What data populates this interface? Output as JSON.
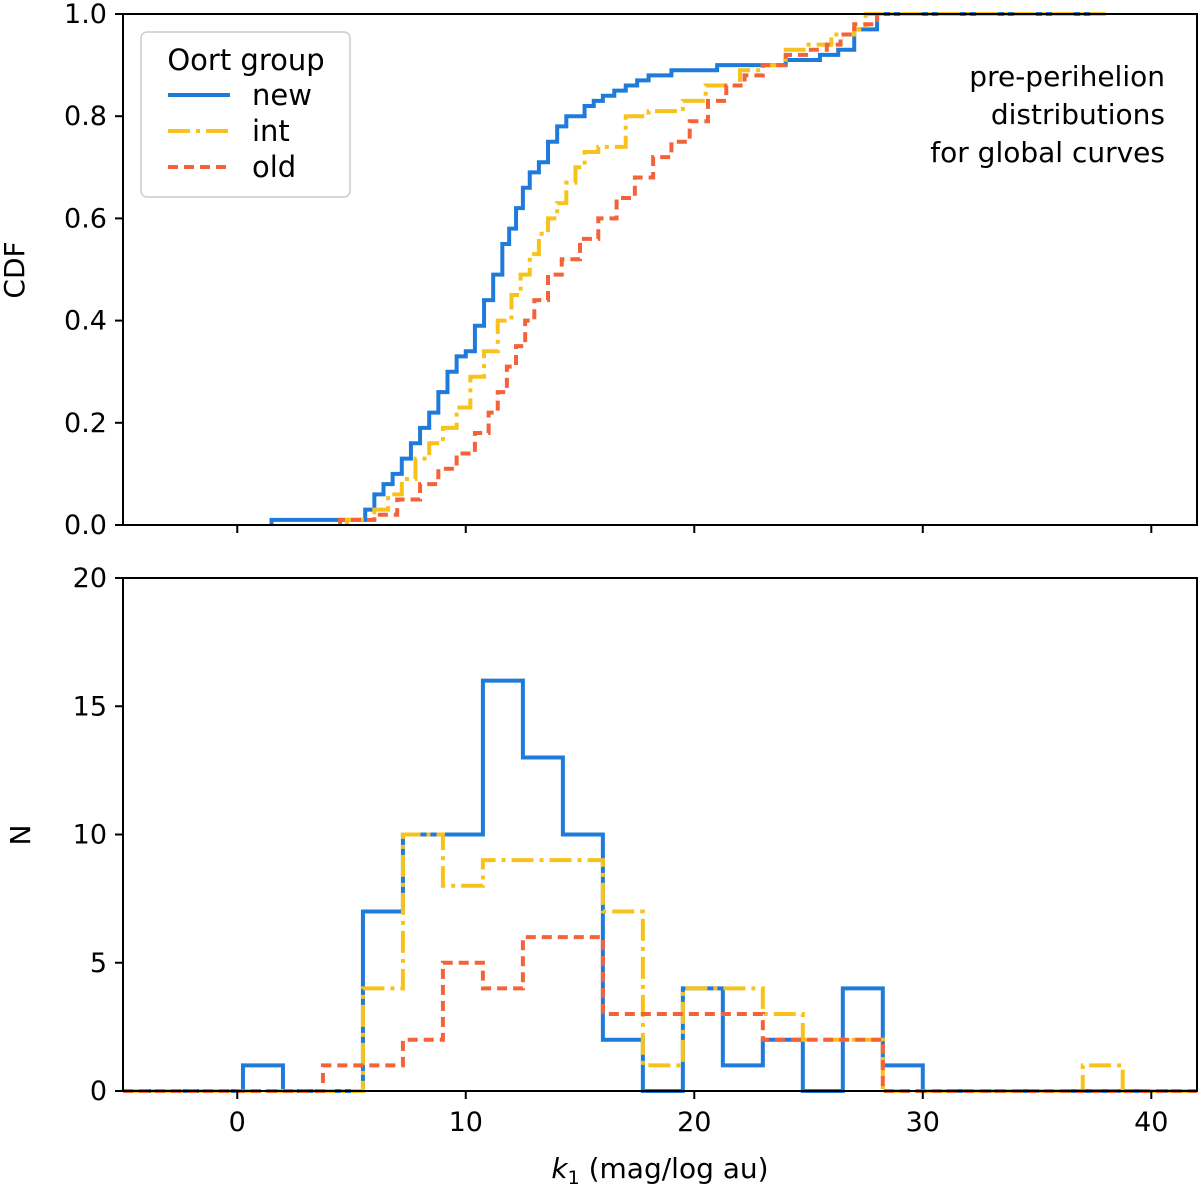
{
  "chart_data": [
    {
      "type": "line",
      "subtype": "step-cdf",
      "ylabel": "CDF",
      "xlabel": "",
      "xlim": [
        -5,
        42
      ],
      "ylim": [
        0,
        1.0
      ],
      "yticks": [
        0.0,
        0.2,
        0.4,
        0.6,
        0.8,
        1.0
      ],
      "ytick_labels": [
        "0.0",
        "0.2",
        "0.4",
        "0.6",
        "0.8",
        "1.0"
      ],
      "xticks": [
        0,
        10,
        20,
        30,
        40
      ],
      "legend": {
        "title": "Oort group",
        "position": "top-left",
        "entries": [
          "new",
          "int",
          "old"
        ]
      },
      "annotation": [
        "pre-perihelion",
        "distributions",
        "for global curves"
      ],
      "series": [
        {
          "name": "new",
          "color": "#1f7bd9",
          "dash": "solid",
          "x": [
            1.5,
            5.6,
            6.0,
            6.4,
            6.8,
            7.2,
            7.6,
            8.0,
            8.4,
            8.8,
            9.2,
            9.6,
            10.0,
            10.4,
            10.8,
            11.2,
            11.6,
            11.9,
            12.2,
            12.5,
            12.8,
            13.2,
            13.6,
            14.0,
            14.4,
            14.8,
            15.2,
            15.6,
            16.0,
            16.5,
            17.0,
            17.5,
            18.0,
            19.0,
            20.5,
            21.0,
            22.0,
            23.0,
            24.0,
            25.5,
            26.3,
            27.0,
            28.0,
            38.0
          ],
          "y": [
            0.01,
            0.03,
            0.06,
            0.08,
            0.1,
            0.13,
            0.16,
            0.19,
            0.22,
            0.26,
            0.3,
            0.33,
            0.34,
            0.39,
            0.44,
            0.49,
            0.55,
            0.58,
            0.62,
            0.66,
            0.69,
            0.71,
            0.75,
            0.78,
            0.8,
            0.8,
            0.82,
            0.83,
            0.84,
            0.85,
            0.86,
            0.87,
            0.88,
            0.89,
            0.89,
            0.9,
            0.9,
            0.9,
            0.91,
            0.92,
            0.93,
            0.97,
            1.0,
            1.0
          ]
        },
        {
          "name": "int",
          "color": "#f7c21b",
          "dash": "long",
          "x": [
            4.8,
            6.0,
            6.6,
            7.2,
            7.8,
            8.4,
            9.0,
            9.6,
            10.2,
            10.8,
            11.4,
            12.0,
            12.4,
            12.8,
            13.2,
            13.6,
            14.0,
            14.4,
            14.8,
            15.2,
            15.8,
            17.0,
            18.0,
            19.5,
            20.5,
            22.0,
            23.0,
            24.0,
            25.0,
            26.0,
            27.0,
            27.5,
            38.0
          ],
          "y": [
            0.01,
            0.03,
            0.06,
            0.09,
            0.13,
            0.16,
            0.19,
            0.23,
            0.29,
            0.34,
            0.4,
            0.45,
            0.49,
            0.53,
            0.57,
            0.6,
            0.63,
            0.67,
            0.7,
            0.73,
            0.74,
            0.8,
            0.81,
            0.83,
            0.86,
            0.89,
            0.9,
            0.93,
            0.94,
            0.96,
            0.97,
            1.0,
            1.0
          ]
        },
        {
          "name": "old",
          "color": "#f4623a",
          "dash": "short",
          "x": [
            4.5,
            6.0,
            7.0,
            8.0,
            8.8,
            9.6,
            10.4,
            11.0,
            11.4,
            11.8,
            12.2,
            12.6,
            13.0,
            13.6,
            14.2,
            15.0,
            15.8,
            16.6,
            17.4,
            18.2,
            19.0,
            19.8,
            20.6,
            21.4,
            22.2,
            23.0,
            24.0,
            25.0,
            25.8,
            26.4,
            27.0,
            28.0
          ],
          "y": [
            0.01,
            0.02,
            0.05,
            0.08,
            0.11,
            0.14,
            0.18,
            0.22,
            0.26,
            0.31,
            0.35,
            0.4,
            0.44,
            0.49,
            0.52,
            0.56,
            0.6,
            0.64,
            0.68,
            0.72,
            0.75,
            0.79,
            0.83,
            0.86,
            0.88,
            0.9,
            0.92,
            0.93,
            0.94,
            0.96,
            0.98,
            1.0
          ]
        }
      ]
    },
    {
      "type": "bar",
      "subtype": "step-histogram",
      "ylabel": "N",
      "xlabel": "k₁ (mag/log au)",
      "xlim": [
        -5,
        42
      ],
      "ylim": [
        0,
        20
      ],
      "yticks": [
        0,
        5,
        10,
        15,
        20
      ],
      "ytick_labels": [
        "0",
        "5",
        "10",
        "15",
        "20"
      ],
      "xticks": [
        0,
        10,
        20,
        30,
        40
      ],
      "xtick_labels": [
        "0",
        "10",
        "20",
        "30",
        "40"
      ],
      "bin_edges": [
        -5.0,
        -3.25,
        -1.5,
        0.25,
        2.0,
        3.75,
        5.5,
        7.25,
        9.0,
        10.75,
        12.5,
        14.25,
        16.0,
        17.75,
        19.5,
        21.25,
        23.0,
        24.75,
        26.5,
        28.25,
        30.0,
        31.75,
        33.5,
        35.25,
        37.0,
        38.75,
        40.5,
        42.0
      ],
      "series": [
        {
          "name": "new",
          "color": "#1f7bd9",
          "dash": "solid",
          "values": [
            0,
            0,
            0,
            1,
            0,
            0,
            7,
            10,
            10,
            16,
            13,
            10,
            2,
            0,
            4,
            1,
            2,
            0,
            4,
            1,
            0,
            0,
            0,
            0,
            0,
            0,
            0
          ]
        },
        {
          "name": "int",
          "color": "#f7c21b",
          "dash": "long",
          "values": [
            0,
            0,
            0,
            0,
            0,
            0,
            4,
            10,
            8,
            9,
            9,
            9,
            7,
            1,
            4,
            4,
            3,
            2,
            2,
            0,
            0,
            0,
            0,
            0,
            1,
            0,
            0
          ]
        },
        {
          "name": "old",
          "color": "#f4623a",
          "dash": "short",
          "values": [
            0,
            0,
            0,
            0,
            0,
            1,
            1,
            2,
            5,
            4,
            6,
            6,
            3,
            3,
            3,
            3,
            2,
            2,
            2,
            0,
            0,
            0,
            0,
            0,
            0,
            0,
            0
          ]
        }
      ]
    }
  ]
}
